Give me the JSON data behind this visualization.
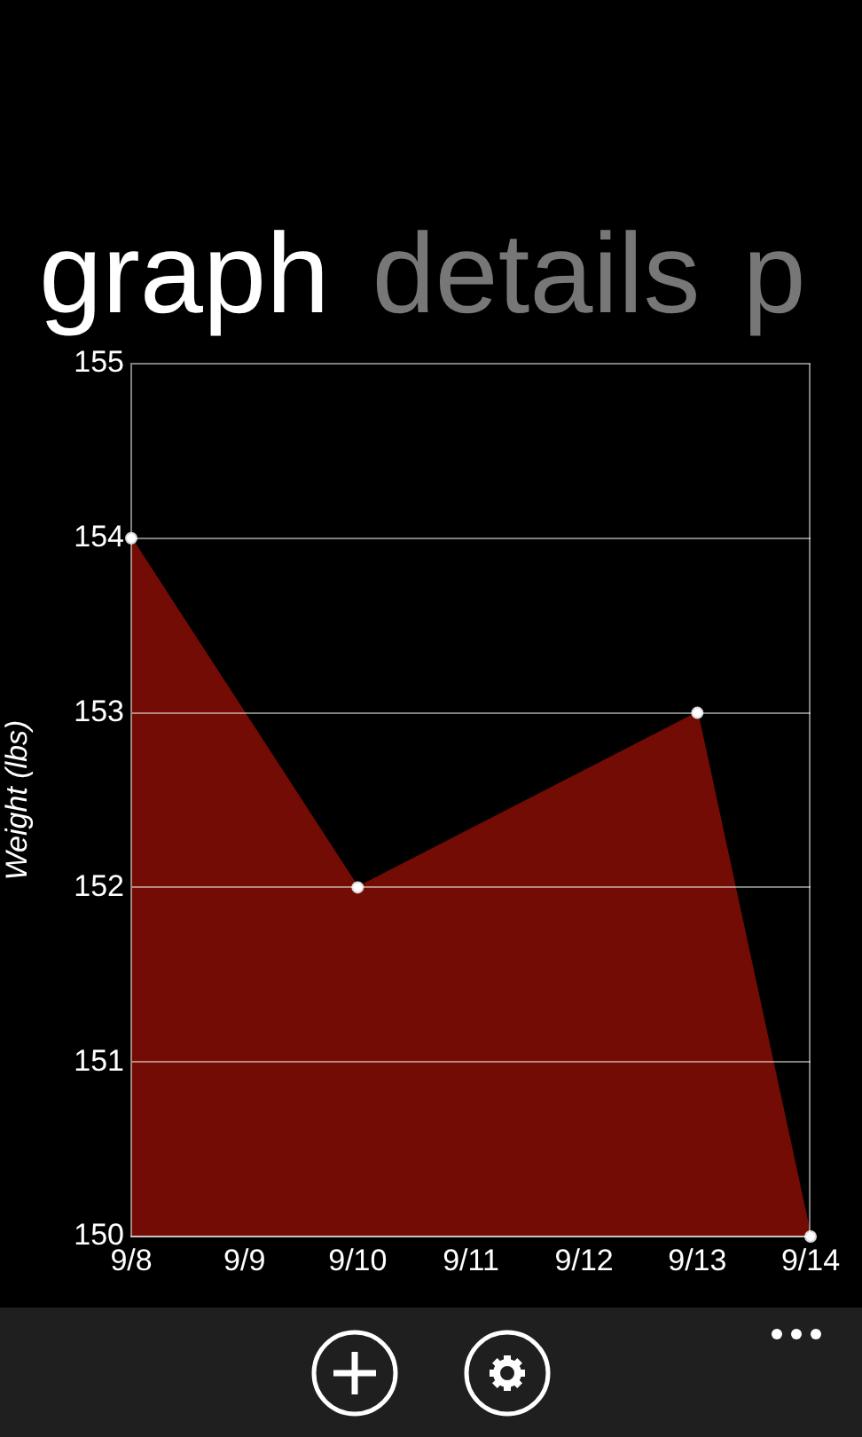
{
  "chart_data": {
    "type": "area",
    "title": "graph",
    "annotations": [
      "details",
      "p"
    ],
    "ylabel": "Weight (lbs)",
    "x": [
      "--09-08",
      "--09-10",
      "--09-13",
      "--09-14"
    ],
    "xlim": [
      "--09-08",
      "--09-14"
    ],
    "xticks": [
      {
        "value": "--09-08",
        "label": "9/8"
      },
      {
        "value": "--09-09",
        "label": "9/9"
      },
      {
        "value": "--09-10",
        "label": "9/10"
      },
      {
        "value": "--09-11",
        "label": "9/11"
      },
      {
        "value": "--09-12",
        "label": "9/12"
      },
      {
        "value": "--09-13",
        "label": "9/13"
      },
      {
        "value": "--09-14",
        "label": "9/14"
      }
    ],
    "ylim": [
      150,
      155
    ],
    "yticks": [
      150,
      151,
      152,
      153,
      154,
      155
    ],
    "values": [
      154,
      152,
      153,
      150
    ],
    "color": "#730c04",
    "grid": "y",
    "marker": "circle"
  }
}
